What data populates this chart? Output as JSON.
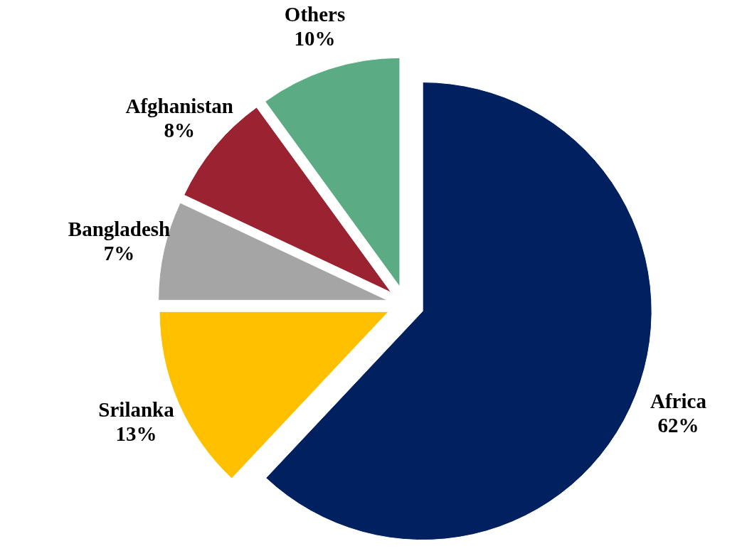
{
  "chart_data": {
    "type": "pie",
    "categories": [
      "Africa",
      "Srilanka",
      "Bangladesh",
      "Afghanistan",
      "Others"
    ],
    "values": [
      62,
      13,
      7,
      8,
      10
    ],
    "colors": [
      "#002060",
      "#ffc000",
      "#a5a5a5",
      "#9b2230",
      "#5bab84"
    ],
    "value_labels": [
      "62%",
      "13%",
      "7%",
      "8%",
      "10%"
    ]
  }
}
